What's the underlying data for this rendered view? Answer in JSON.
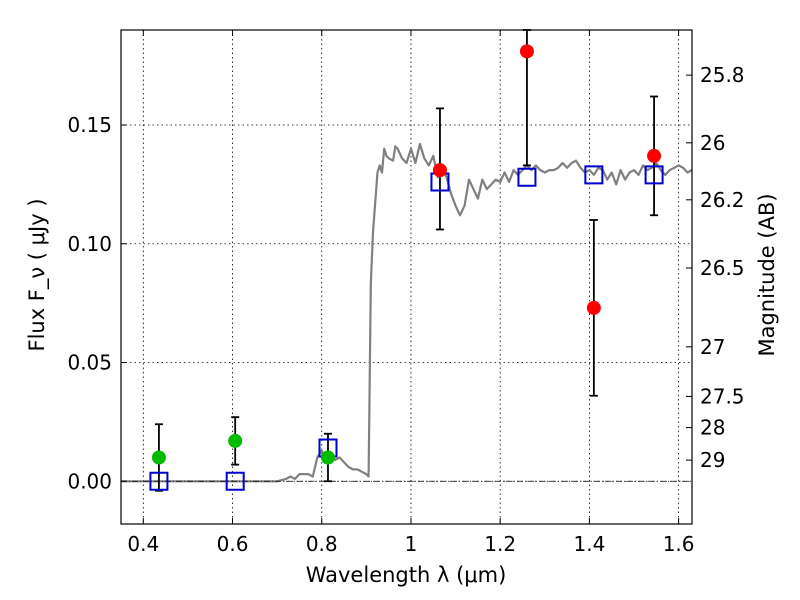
{
  "chart_data": {
    "type": "scatter",
    "title": "",
    "xlabel": "Wavelength  λ (μm)",
    "ylabel": "Flux  F_ν  ( μJy )",
    "ylabel_right": "Magnitude (AB)",
    "xlim": [
      0.35,
      1.63
    ],
    "ylim": [
      -0.018,
      0.19
    ],
    "x_ticks": [
      0.4,
      0.6,
      0.8,
      1.0,
      1.2,
      1.4,
      1.6
    ],
    "x_tick_labels": [
      "0.4",
      "0.6",
      "0.8",
      "1",
      "1.2",
      "1.4",
      "1.6"
    ],
    "y_ticks": [
      0.0,
      0.05,
      0.1,
      0.15
    ],
    "y_tick_labels": [
      "0.00",
      "0.05",
      "0.10",
      "0.15"
    ],
    "right_ticks": [
      {
        "label": "25.8",
        "flux": 0.171
      },
      {
        "label": "26",
        "flux": 0.1425
      },
      {
        "label": "26.2",
        "flux": 0.1185
      },
      {
        "label": "26.5",
        "flux": 0.0898
      },
      {
        "label": "27",
        "flux": 0.0566
      },
      {
        "label": "27.5",
        "flux": 0.0357
      },
      {
        "label": "28",
        "flux": 0.0226
      },
      {
        "label": "29",
        "flux": 0.0089
      }
    ],
    "grid": true,
    "zero_line": true,
    "colors": {
      "model": "#808080",
      "detected": "#ff0000",
      "dropout": "#00bb00",
      "model_band": "#0000cc",
      "errorbar": "#000000",
      "grid": "#000000"
    },
    "series": [
      {
        "role": "model-spectrum",
        "x": [
          0.35,
          0.7,
          0.72,
          0.73,
          0.74,
          0.75,
          0.76,
          0.77,
          0.78,
          0.79,
          0.8,
          0.81,
          0.82,
          0.83,
          0.84,
          0.85,
          0.86,
          0.87,
          0.88,
          0.89,
          0.9,
          0.905,
          0.91,
          0.915,
          0.925,
          0.93,
          0.935,
          0.94,
          0.945,
          0.95,
          0.96,
          0.965,
          0.97,
          0.975,
          0.98,
          0.99,
          1.0,
          1.01,
          1.02,
          1.03,
          1.04,
          1.05,
          1.06,
          1.07,
          1.08,
          1.09,
          1.1,
          1.11,
          1.12,
          1.13,
          1.14,
          1.15,
          1.16,
          1.17,
          1.18,
          1.19,
          1.2,
          1.21,
          1.22,
          1.23,
          1.24,
          1.25,
          1.26,
          1.27,
          1.28,
          1.29,
          1.3,
          1.31,
          1.32,
          1.33,
          1.34,
          1.35,
          1.36,
          1.37,
          1.38,
          1.39,
          1.4,
          1.41,
          1.42,
          1.43,
          1.44,
          1.45,
          1.46,
          1.47,
          1.48,
          1.49,
          1.5,
          1.51,
          1.52,
          1.53,
          1.54,
          1.55,
          1.56,
          1.57,
          1.58,
          1.59,
          1.6,
          1.61,
          1.62,
          1.63
        ],
        "y": [
          0.0,
          0.0,
          0.001,
          0.002,
          0.001,
          0.003,
          0.003,
          0.003,
          0.002,
          0.01,
          0.013,
          0.008,
          0.011,
          0.009,
          0.01,
          0.008,
          0.006,
          0.005,
          0.005,
          0.004,
          0.003,
          0.002,
          0.083,
          0.105,
          0.13,
          0.133,
          0.13,
          0.14,
          0.137,
          0.136,
          0.135,
          0.141,
          0.14,
          0.138,
          0.136,
          0.134,
          0.14,
          0.134,
          0.142,
          0.136,
          0.133,
          0.137,
          0.128,
          0.132,
          0.128,
          0.121,
          0.116,
          0.112,
          0.116,
          0.127,
          0.123,
          0.119,
          0.127,
          0.123,
          0.125,
          0.127,
          0.126,
          0.13,
          0.126,
          0.131,
          0.129,
          0.131,
          0.133,
          0.131,
          0.133,
          0.131,
          0.13,
          0.131,
          0.131,
          0.132,
          0.134,
          0.132,
          0.134,
          0.135,
          0.132,
          0.13,
          0.131,
          0.129,
          0.132,
          0.131,
          0.127,
          0.13,
          0.125,
          0.131,
          0.127,
          0.13,
          0.131,
          0.129,
          0.133,
          0.131,
          0.132,
          0.134,
          0.131,
          0.129,
          0.131,
          0.132,
          0.133,
          0.132,
          0.13,
          0.131
        ]
      },
      {
        "role": "detected-photometry",
        "points": [
          {
            "x": 1.065,
            "y": 0.131,
            "err_lo": 0.106,
            "err_hi": 0.157
          },
          {
            "x": 1.26,
            "y": 0.181,
            "err_lo": 0.133,
            "err_hi": 0.19
          },
          {
            "x": 1.41,
            "y": 0.073,
            "err_lo": 0.036,
            "err_hi": 0.11
          },
          {
            "x": 1.545,
            "y": 0.137,
            "err_lo": 0.112,
            "err_hi": 0.162
          }
        ]
      },
      {
        "role": "dropout-photometry",
        "points": [
          {
            "x": 0.435,
            "y": 0.01,
            "err_lo": -0.004,
            "err_hi": 0.024
          },
          {
            "x": 0.606,
            "y": 0.017,
            "err_lo": 0.007,
            "err_hi": 0.027
          },
          {
            "x": 0.814,
            "y": 0.01,
            "err_lo": 0.0,
            "err_hi": 0.02
          }
        ]
      },
      {
        "role": "model-band-flux",
        "points": [
          {
            "x": 0.435,
            "y": 0.0
          },
          {
            "x": 0.606,
            "y": 0.0
          },
          {
            "x": 0.814,
            "y": 0.014
          },
          {
            "x": 1.065,
            "y": 0.126
          },
          {
            "x": 1.26,
            "y": 0.128
          },
          {
            "x": 1.41,
            "y": 0.129
          },
          {
            "x": 1.545,
            "y": 0.129
          }
        ]
      }
    ]
  }
}
